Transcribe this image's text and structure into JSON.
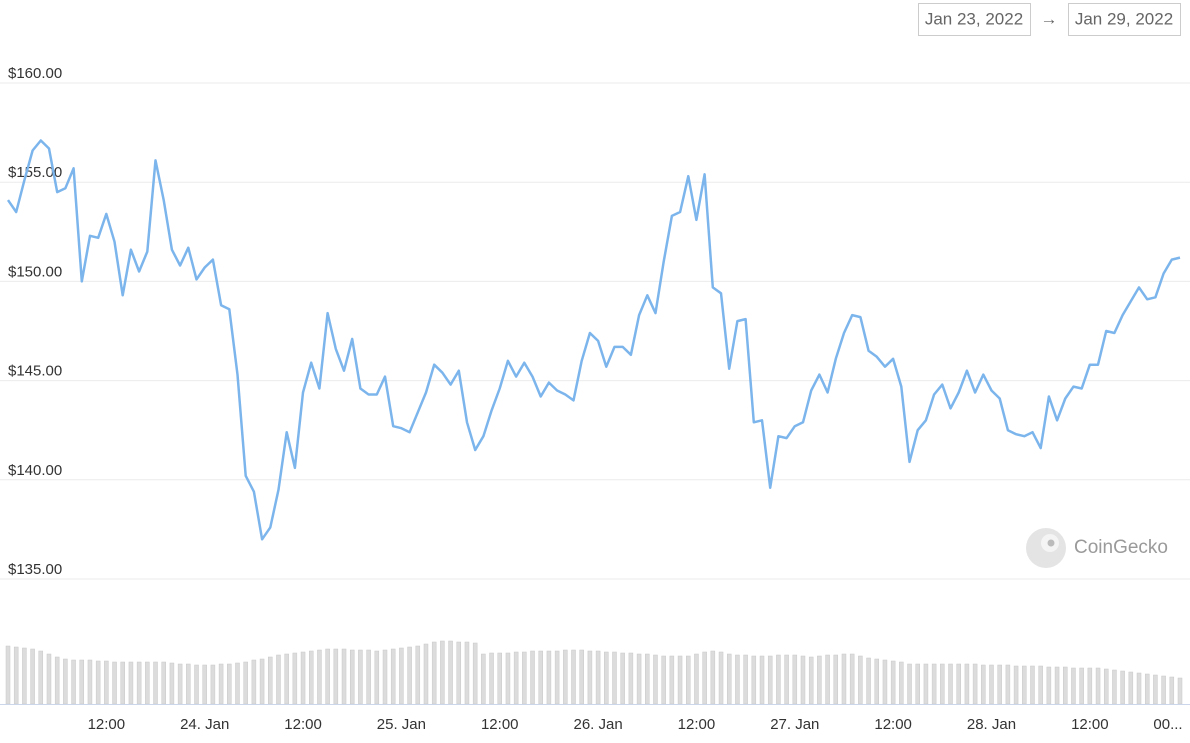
{
  "date_range": {
    "start": "Jan 23, 2022",
    "separator": "→",
    "end": "Jan 29, 2022"
  },
  "watermark": "CoinGecko",
  "chart_data": [
    {
      "type": "line",
      "color": "#7cb5ec",
      "grid": true,
      "ylim": [
        135,
        160
      ],
      "yticks": [
        {
          "value": 135,
          "label": "$135.00"
        },
        {
          "value": 140,
          "label": "$140.00"
        },
        {
          "value": 145,
          "label": "$145.00"
        },
        {
          "value": 150,
          "label": "$150.00"
        },
        {
          "value": 155,
          "label": "$155.00"
        },
        {
          "value": 160,
          "label": "$160.00"
        }
      ],
      "categories": [
        null,
        null,
        null,
        null,
        null,
        null,
        null,
        null,
        null,
        null,
        null,
        null,
        "12:00",
        null,
        null,
        null,
        null,
        null,
        null,
        null,
        null,
        null,
        null,
        null,
        "24. Jan",
        null,
        null,
        null,
        null,
        null,
        null,
        null,
        null,
        null,
        null,
        null,
        "12:00",
        null,
        null,
        null,
        null,
        null,
        null,
        null,
        null,
        null,
        null,
        null,
        "25. Jan",
        null,
        null,
        null,
        null,
        null,
        null,
        null,
        null,
        null,
        null,
        null,
        "12:00",
        null,
        null,
        null,
        null,
        null,
        null,
        null,
        null,
        null,
        null,
        null,
        "26. Jan",
        null,
        null,
        null,
        null,
        null,
        null,
        null,
        null,
        null,
        null,
        null,
        "12:00",
        null,
        null,
        null,
        null,
        null,
        null,
        null,
        null,
        null,
        null,
        null,
        "27. Jan",
        null,
        null,
        null,
        null,
        null,
        null,
        null,
        null,
        null,
        null,
        null,
        "12:00",
        null,
        null,
        null,
        null,
        null,
        null,
        null,
        null,
        null,
        null,
        null,
        "28. Jan",
        null,
        null,
        null,
        null,
        null,
        null,
        null,
        null,
        null,
        null,
        null,
        "12:00",
        null,
        null,
        null,
        null,
        null,
        null,
        null,
        null,
        null,
        null,
        "00..."
      ],
      "values": [
        154.1,
        153.5,
        155.1,
        156.6,
        157.1,
        156.7,
        154.5,
        154.7,
        155.7,
        150.0,
        152.3,
        152.2,
        153.4,
        152.0,
        149.3,
        151.6,
        150.5,
        151.5,
        156.1,
        154.1,
        151.6,
        150.8,
        151.7,
        150.1,
        150.7,
        151.1,
        148.8,
        148.6,
        145.3,
        140.2,
        139.4,
        137.0,
        137.6,
        139.5,
        142.4,
        140.6,
        144.4,
        145.9,
        144.6,
        148.4,
        146.6,
        145.5,
        147.1,
        144.6,
        144.3,
        144.3,
        145.2,
        142.7,
        142.6,
        142.4,
        143.4,
        144.4,
        145.8,
        145.4,
        144.8,
        145.5,
        142.9,
        141.5,
        142.2,
        143.5,
        144.6,
        146.0,
        145.2,
        145.9,
        145.2,
        144.2,
        144.9,
        144.5,
        144.3,
        144.0,
        146.0,
        147.4,
        147.0,
        145.7,
        146.7,
        146.7,
        146.3,
        148.3,
        149.3,
        148.4,
        151.0,
        153.3,
        153.5,
        155.3,
        153.1,
        155.4,
        149.7,
        149.4,
        145.6,
        148.0,
        148.1,
        142.9,
        143.0,
        139.6,
        142.2,
        142.1,
        142.7,
        142.9,
        144.5,
        145.3,
        144.4,
        146.1,
        147.4,
        148.3,
        148.2,
        146.5,
        146.2,
        145.7,
        146.1,
        144.7,
        140.9,
        142.5,
        143.0,
        144.3,
        144.8,
        143.6,
        144.4,
        145.5,
        144.4,
        145.3,
        144.5,
        144.1,
        142.5,
        142.3,
        142.2,
        142.4,
        141.6,
        144.2,
        143.0,
        144.1,
        144.7,
        144.6,
        145.8,
        145.8,
        147.5,
        147.4,
        148.3,
        149.0,
        149.7,
        149.1,
        149.2,
        150.4,
        151.1,
        151.2
      ]
    },
    {
      "type": "bar",
      "color": "#dcdcdc",
      "ylim": [
        0,
        70
      ],
      "values": [
        58,
        57,
        56,
        55,
        53,
        50,
        47,
        45,
        44,
        44,
        44,
        43,
        43,
        42,
        42,
        42,
        42,
        42,
        42,
        42,
        41,
        40,
        40,
        39,
        39,
        39,
        40,
        40,
        41,
        42,
        44,
        45,
        47,
        49,
        50,
        51,
        52,
        53,
        54,
        55,
        55,
        55,
        54,
        54,
        54,
        53,
        54,
        55,
        56,
        57,
        58,
        60,
        62,
        63,
        63,
        62,
        62,
        61,
        50,
        51,
        51,
        51,
        52,
        52,
        53,
        53,
        53,
        53,
        54,
        54,
        54,
        53,
        53,
        52,
        52,
        51,
        51,
        50,
        50,
        49,
        48,
        48,
        48,
        48,
        50,
        52,
        53,
        52,
        50,
        49,
        49,
        48,
        48,
        48,
        49,
        49,
        49,
        48,
        47,
        48,
        49,
        49,
        50,
        50,
        48,
        46,
        45,
        44,
        43,
        42,
        40,
        40,
        40,
        40,
        40,
        40,
        40,
        40,
        40,
        39,
        39,
        39,
        39,
        38,
        38,
        38,
        38,
        37,
        37,
        37,
        36,
        36,
        36,
        36,
        35,
        34,
        33,
        32,
        31,
        30,
        29,
        28,
        27,
        26
      ]
    }
  ]
}
